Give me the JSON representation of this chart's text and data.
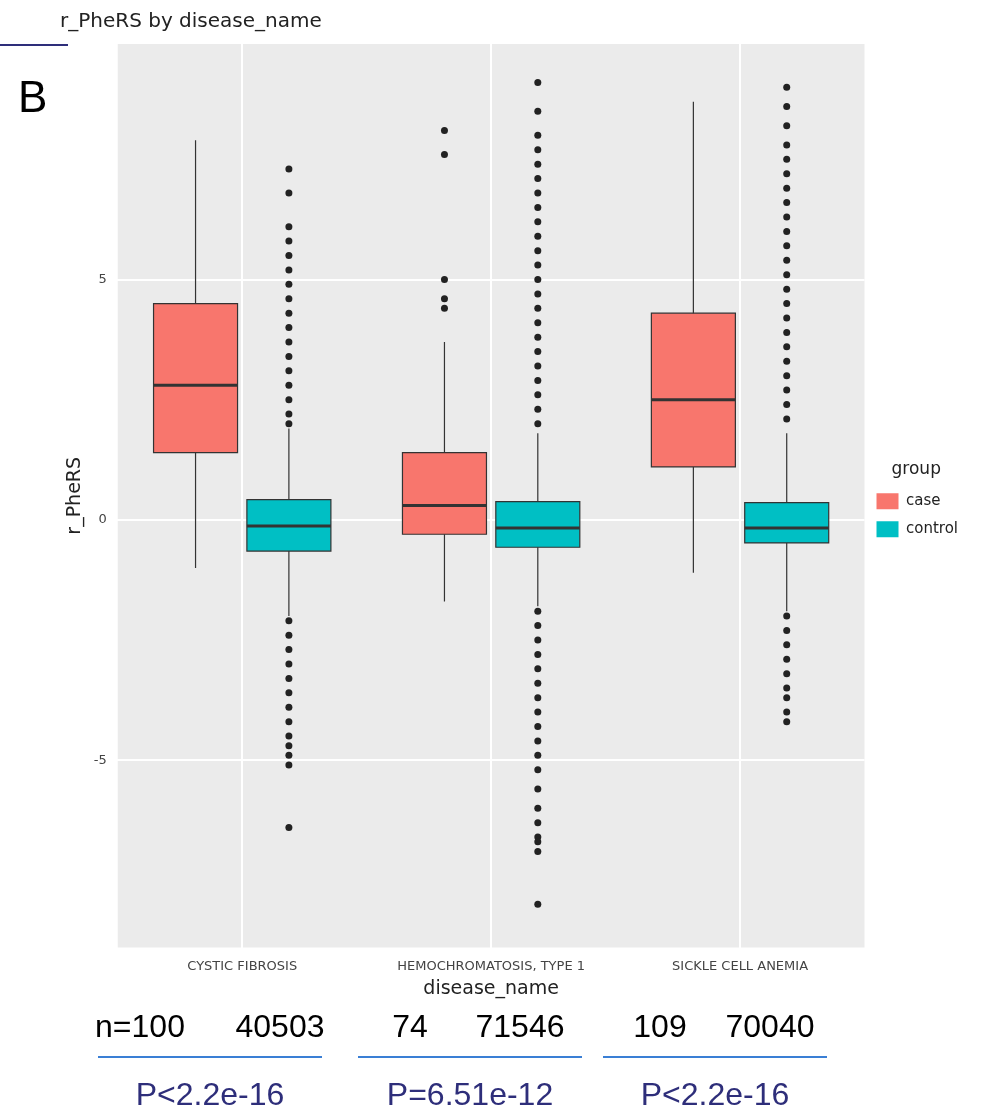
{
  "chart_data": {
    "type": "box",
    "title": "r_PheRS by disease_name",
    "xlabel": "disease_name",
    "ylabel": "r_PheRS",
    "legend_title": "group",
    "legend": "right",
    "grid": true,
    "categories": [
      "CYSTIC FIBROSIS",
      "HEMOCHROMATOSIS, TYPE 1",
      "SICKLE CELL ANEMIA"
    ],
    "ylim": [
      -8.9,
      9.9
    ],
    "yticks": [
      -5,
      0,
      5
    ],
    "series": [
      {
        "name": "case",
        "color": "#f8766d",
        "boxes": [
          {
            "low": -1.0,
            "q1": 1.4,
            "median": 2.8,
            "q3": 4.5,
            "high": 7.9
          },
          {
            "low": -1.7,
            "q1": -0.3,
            "median": 0.3,
            "q3": 1.4,
            "high": 3.7,
            "outliers": [
              8.1,
              7.6,
              5.0,
              4.6,
              4.4
            ]
          },
          {
            "low": -1.1,
            "q1": 1.1,
            "median": 2.5,
            "q3": 4.3,
            "high": 8.7
          }
        ]
      },
      {
        "name": "control",
        "color": "#00bfc4",
        "boxes": [
          {
            "low": -2.0,
            "q1": -0.65,
            "median": -0.13,
            "q3": 0.42,
            "high": 1.9,
            "outliers": [
              7.3,
              6.8,
              6.1,
              5.8,
              5.5,
              5.2,
              4.9,
              4.6,
              4.3,
              4.0,
              3.7,
              3.4,
              3.1,
              2.8,
              2.5,
              2.2,
              2.0,
              -2.1,
              -2.4,
              -2.7,
              -3.0,
              -3.3,
              -3.6,
              -3.9,
              -4.2,
              -4.5,
              -4.7,
              -4.9,
              -5.1,
              -6.4
            ]
          },
          {
            "low": -1.8,
            "q1": -0.57,
            "median": -0.17,
            "q3": 0.38,
            "high": 1.8,
            "outliers": [
              9.1,
              8.5,
              8.0,
              7.7,
              7.4,
              7.1,
              6.8,
              6.5,
              6.2,
              5.9,
              5.6,
              5.3,
              5.0,
              4.7,
              4.4,
              4.1,
              3.8,
              3.5,
              3.2,
              2.9,
              2.6,
              2.3,
              2.0,
              -1.9,
              -2.2,
              -2.5,
              -2.8,
              -3.1,
              -3.4,
              -3.7,
              -4.0,
              -4.3,
              -4.6,
              -4.9,
              -5.2,
              -5.6,
              -6.0,
              -6.3,
              -6.6,
              -6.7,
              -6.9,
              -8.0
            ]
          },
          {
            "low": -1.9,
            "q1": -0.48,
            "median": -0.17,
            "q3": 0.36,
            "high": 1.8,
            "outliers": [
              9.0,
              8.6,
              8.2,
              7.8,
              7.5,
              7.2,
              6.9,
              6.6,
              6.3,
              6.0,
              5.7,
              5.4,
              5.1,
              4.8,
              4.5,
              4.2,
              3.9,
              3.6,
              3.3,
              3.0,
              2.7,
              2.4,
              2.1,
              -2.0,
              -2.3,
              -2.6,
              -2.9,
              -3.2,
              -3.5,
              -3.7,
              -4.0,
              -4.2
            ]
          }
        ]
      }
    ],
    "annotations": [
      "B",
      "n=100",
      "40503",
      "74",
      "71546",
      "109",
      "70040",
      "P<2.2e-16",
      "P=6.51e-12",
      "P<2.2e-16"
    ]
  }
}
